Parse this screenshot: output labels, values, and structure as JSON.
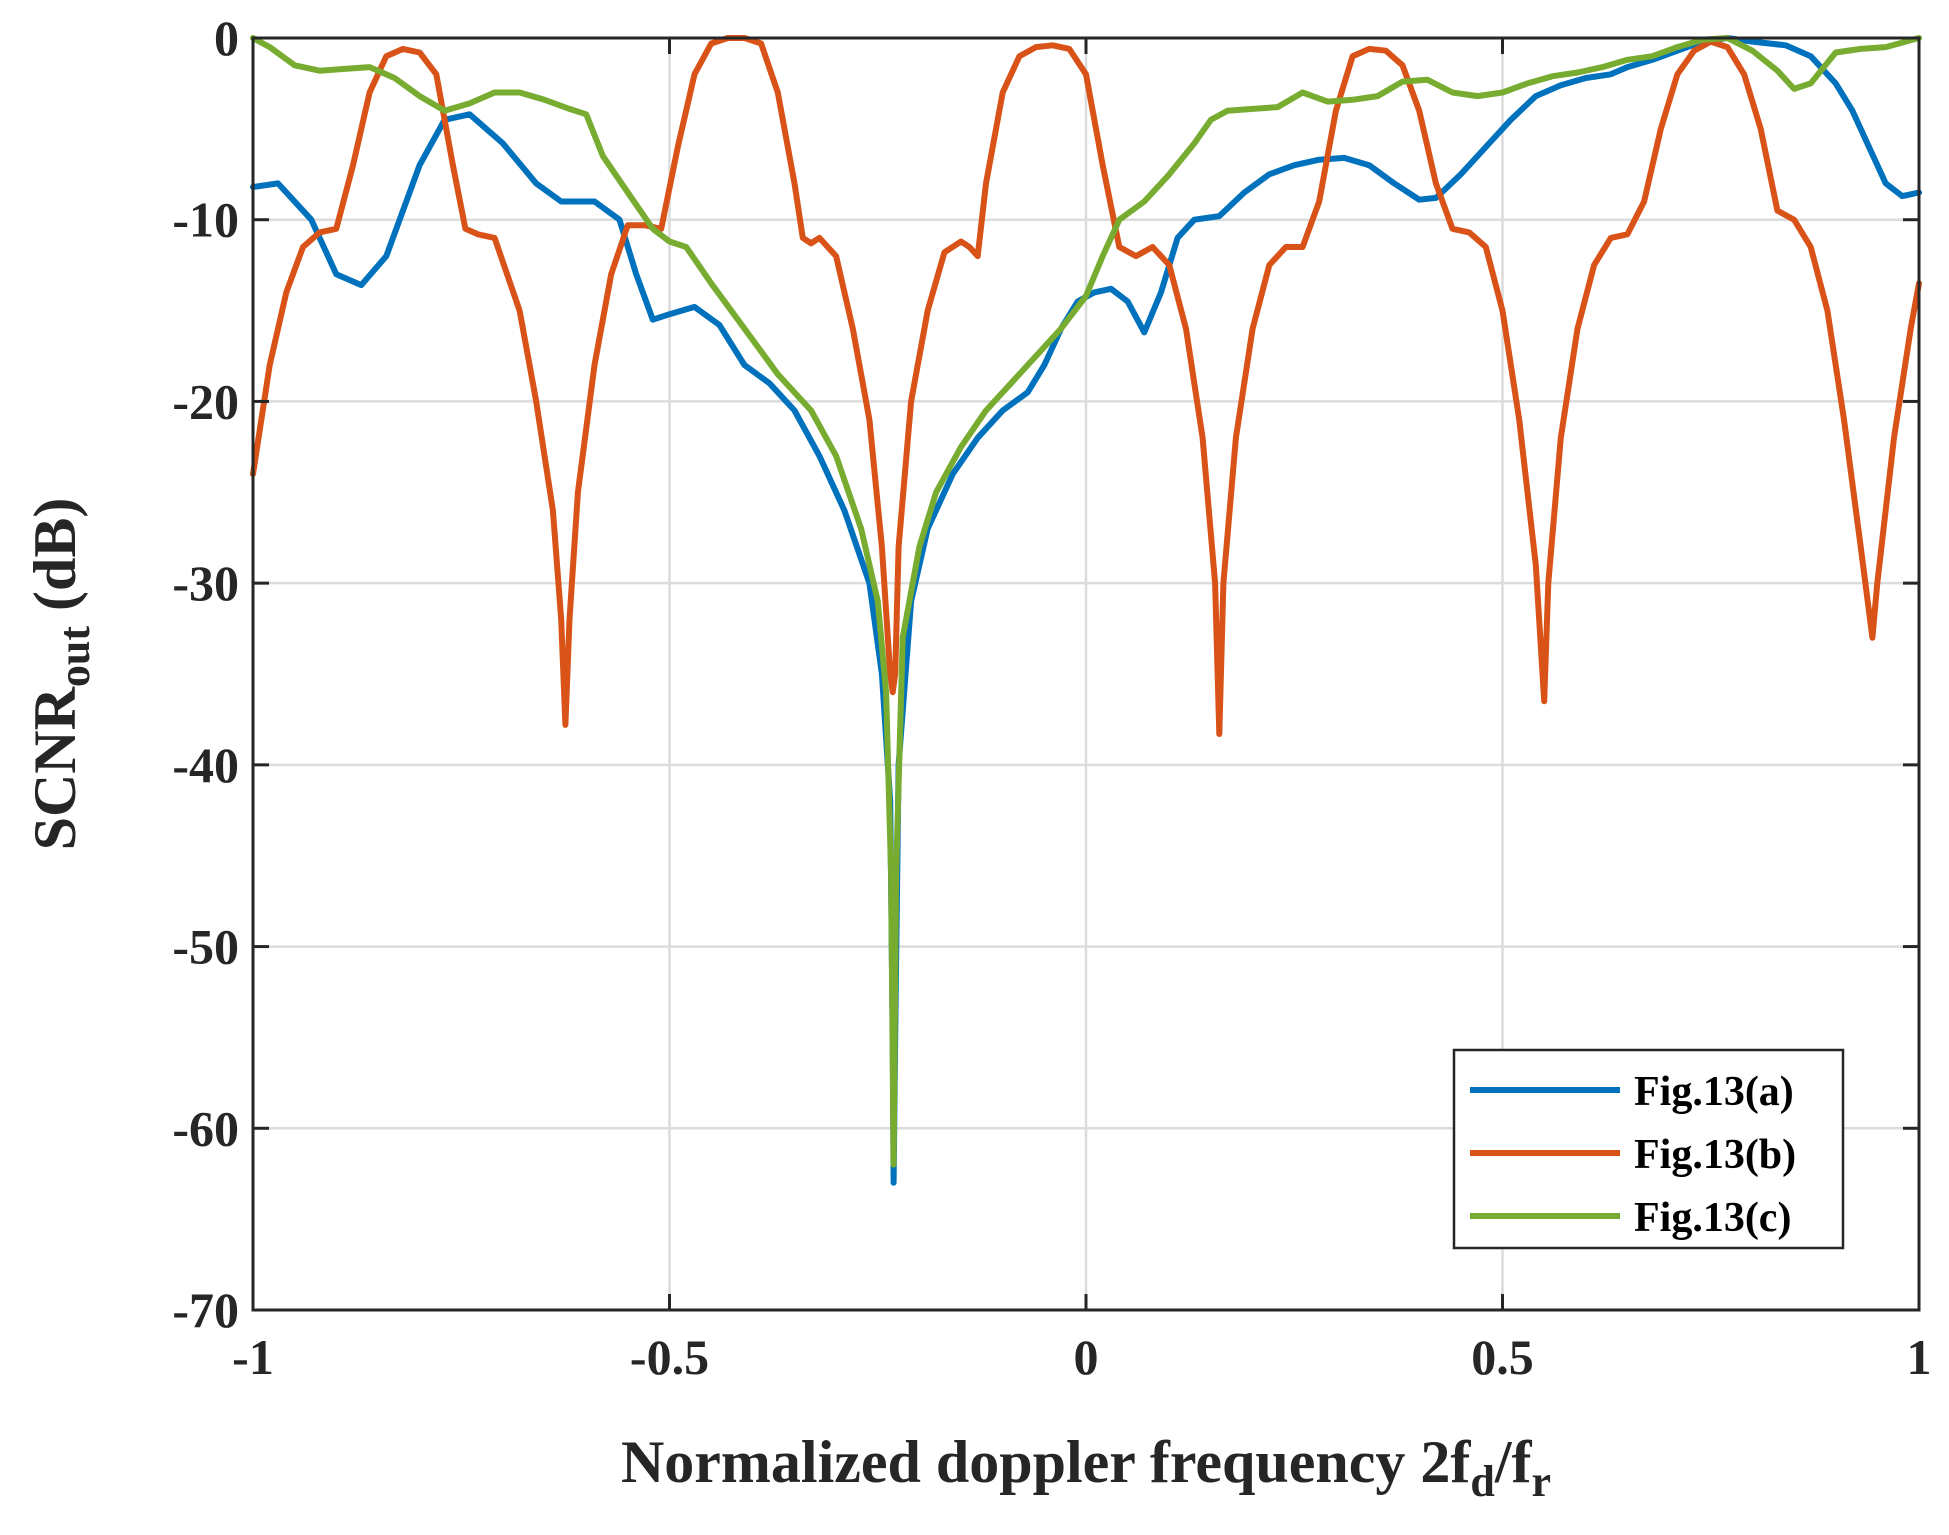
{
  "chart_data": {
    "type": "line",
    "xlabel": "Normalized doppler frequency 2f_d/f_r",
    "xlabel_parts": {
      "main": "Normalized doppler frequency 2f",
      "sub1": "d",
      "slash": "/f",
      "sub2": "r"
    },
    "ylabel": "SCNR_out (dB)",
    "ylabel_parts": {
      "main": "SCNR",
      "sub": "out",
      "unit": " (dB)"
    },
    "xlim": [
      -1,
      1
    ],
    "ylim": [
      -70,
      0
    ],
    "xticks": [
      -1,
      -0.5,
      0,
      0.5,
      1
    ],
    "xtick_labels": [
      "-1",
      "-0.5",
      "0",
      "0.5",
      "1"
    ],
    "yticks": [
      0,
      -10,
      -20,
      -30,
      -40,
      -50,
      -60,
      -70
    ],
    "ytick_labels": [
      "0",
      "-10",
      "-20",
      "-30",
      "-40",
      "-50",
      "-60",
      "-70"
    ],
    "grid": true,
    "legend_position": "bottom-right",
    "series": [
      {
        "name": "Fig.13(a)",
        "color": "#0072BD",
        "points": [
          [
            -1,
            -8.2
          ],
          [
            -0.97,
            -8.0
          ],
          [
            -0.93,
            -10
          ],
          [
            -0.9,
            -13
          ],
          [
            -0.87,
            -13.6
          ],
          [
            -0.84,
            -12
          ],
          [
            -0.8,
            -7
          ],
          [
            -0.77,
            -4.5
          ],
          [
            -0.74,
            -4.2
          ],
          [
            -0.7,
            -5.8
          ],
          [
            -0.66,
            -8
          ],
          [
            -0.63,
            -9
          ],
          [
            -0.59,
            -9
          ],
          [
            -0.56,
            -10
          ],
          [
            -0.54,
            -13
          ],
          [
            -0.52,
            -15.5
          ],
          [
            -0.5,
            -15.2
          ],
          [
            -0.47,
            -14.8
          ],
          [
            -0.44,
            -15.8
          ],
          [
            -0.41,
            -18
          ],
          [
            -0.38,
            -19
          ],
          [
            -0.35,
            -20.5
          ],
          [
            -0.32,
            -23
          ],
          [
            -0.29,
            -26
          ],
          [
            -0.26,
            -30
          ],
          [
            -0.245,
            -35
          ],
          [
            -0.235,
            -42
          ],
          [
            -0.232,
            -55
          ],
          [
            -0.231,
            -63
          ],
          [
            -0.229,
            -55
          ],
          [
            -0.225,
            -40
          ],
          [
            -0.21,
            -31
          ],
          [
            -0.19,
            -27
          ],
          [
            -0.16,
            -24
          ],
          [
            -0.13,
            -22
          ],
          [
            -0.1,
            -20.5
          ],
          [
            -0.07,
            -19.5
          ],
          [
            -0.05,
            -18
          ],
          [
            -0.03,
            -16
          ],
          [
            -0.01,
            -14.5
          ],
          [
            0.01,
            -14
          ],
          [
            0.03,
            -13.8
          ],
          [
            0.05,
            -14.5
          ],
          [
            0.07,
            -16.2
          ],
          [
            0.09,
            -14
          ],
          [
            0.11,
            -11
          ],
          [
            0.13,
            -10
          ],
          [
            0.16,
            -9.8
          ],
          [
            0.19,
            -8.5
          ],
          [
            0.22,
            -7.5
          ],
          [
            0.25,
            -7
          ],
          [
            0.28,
            -6.7
          ],
          [
            0.31,
            -6.6
          ],
          [
            0.34,
            -7
          ],
          [
            0.37,
            -8
          ],
          [
            0.4,
            -8.9
          ],
          [
            0.42,
            -8.8
          ],
          [
            0.45,
            -7.5
          ],
          [
            0.48,
            -6
          ],
          [
            0.51,
            -4.5
          ],
          [
            0.54,
            -3.2
          ],
          [
            0.57,
            -2.6
          ],
          [
            0.6,
            -2.2
          ],
          [
            0.63,
            -2
          ],
          [
            0.65,
            -1.6
          ],
          [
            0.68,
            -1.2
          ],
          [
            0.71,
            -0.7
          ],
          [
            0.74,
            -0.2
          ],
          [
            0.77,
            0
          ],
          [
            0.8,
            -0.2
          ],
          [
            0.84,
            -0.4
          ],
          [
            0.87,
            -1
          ],
          [
            0.9,
            -2.5
          ],
          [
            0.92,
            -4
          ],
          [
            0.94,
            -6
          ],
          [
            0.96,
            -8
          ],
          [
            0.98,
            -8.7
          ],
          [
            1,
            -8.5
          ]
        ]
      },
      {
        "name": "Fig.13(b)",
        "color": "#D95319",
        "points": [
          [
            -1,
            -24
          ],
          [
            -0.98,
            -18
          ],
          [
            -0.96,
            -14
          ],
          [
            -0.94,
            -11.5
          ],
          [
            -0.92,
            -10.7
          ],
          [
            -0.9,
            -10.5
          ],
          [
            -0.88,
            -7
          ],
          [
            -0.86,
            -3
          ],
          [
            -0.84,
            -1
          ],
          [
            -0.82,
            -0.6
          ],
          [
            -0.8,
            -0.8
          ],
          [
            -0.78,
            -2
          ],
          [
            -0.76,
            -7
          ],
          [
            -0.745,
            -10.5
          ],
          [
            -0.73,
            -10.8
          ],
          [
            -0.71,
            -11
          ],
          [
            -0.68,
            -15
          ],
          [
            -0.66,
            -20
          ],
          [
            -0.64,
            -26
          ],
          [
            -0.63,
            -32
          ],
          [
            -0.625,
            -37.8
          ],
          [
            -0.62,
            -32
          ],
          [
            -0.61,
            -25
          ],
          [
            -0.59,
            -18
          ],
          [
            -0.57,
            -13
          ],
          [
            -0.55,
            -10.3
          ],
          [
            -0.53,
            -10.3
          ],
          [
            -0.51,
            -10.5
          ],
          [
            -0.49,
            -6
          ],
          [
            -0.47,
            -2
          ],
          [
            -0.45,
            -0.3
          ],
          [
            -0.43,
            0
          ],
          [
            -0.41,
            0
          ],
          [
            -0.39,
            -0.3
          ],
          [
            -0.37,
            -3
          ],
          [
            -0.35,
            -8
          ],
          [
            -0.34,
            -11
          ],
          [
            -0.33,
            -11.3
          ],
          [
            -0.32,
            -11
          ],
          [
            -0.3,
            -12
          ],
          [
            -0.28,
            -16
          ],
          [
            -0.26,
            -21
          ],
          [
            -0.245,
            -28
          ],
          [
            -0.235,
            -35
          ],
          [
            -0.232,
            -36
          ],
          [
            -0.229,
            -35
          ],
          [
            -0.225,
            -28
          ],
          [
            -0.21,
            -20
          ],
          [
            -0.19,
            -15
          ],
          [
            -0.17,
            -11.8
          ],
          [
            -0.15,
            -11.2
          ],
          [
            -0.14,
            -11.5
          ],
          [
            -0.13,
            -12
          ],
          [
            -0.12,
            -8
          ],
          [
            -0.1,
            -3
          ],
          [
            -0.08,
            -1
          ],
          [
            -0.06,
            -0.5
          ],
          [
            -0.04,
            -0.4
          ],
          [
            -0.02,
            -0.6
          ],
          [
            0,
            -2
          ],
          [
            0.02,
            -7
          ],
          [
            0.04,
            -11.5
          ],
          [
            0.06,
            -12
          ],
          [
            0.08,
            -11.5
          ],
          [
            0.1,
            -12.5
          ],
          [
            0.12,
            -16
          ],
          [
            0.14,
            -22
          ],
          [
            0.155,
            -30
          ],
          [
            0.16,
            -38.3
          ],
          [
            0.165,
            -30
          ],
          [
            0.18,
            -22
          ],
          [
            0.2,
            -16
          ],
          [
            0.22,
            -12.5
          ],
          [
            0.24,
            -11.5
          ],
          [
            0.26,
            -11.5
          ],
          [
            0.28,
            -9
          ],
          [
            0.3,
            -4
          ],
          [
            0.32,
            -1
          ],
          [
            0.34,
            -0.6
          ],
          [
            0.36,
            -0.7
          ],
          [
            0.38,
            -1.5
          ],
          [
            0.4,
            -4
          ],
          [
            0.42,
            -8
          ],
          [
            0.44,
            -10.5
          ],
          [
            0.46,
            -10.7
          ],
          [
            0.48,
            -11.5
          ],
          [
            0.5,
            -15
          ],
          [
            0.52,
            -21
          ],
          [
            0.54,
            -29
          ],
          [
            0.55,
            -36.5
          ],
          [
            0.555,
            -30
          ],
          [
            0.57,
            -22
          ],
          [
            0.59,
            -16
          ],
          [
            0.61,
            -12.5
          ],
          [
            0.63,
            -11
          ],
          [
            0.65,
            -10.8
          ],
          [
            0.67,
            -9
          ],
          [
            0.69,
            -5
          ],
          [
            0.71,
            -2
          ],
          [
            0.73,
            -0.7
          ],
          [
            0.75,
            -0.2
          ],
          [
            0.77,
            -0.5
          ],
          [
            0.79,
            -2
          ],
          [
            0.81,
            -5
          ],
          [
            0.83,
            -9.5
          ],
          [
            0.85,
            -10
          ],
          [
            0.87,
            -11.5
          ],
          [
            0.89,
            -15
          ],
          [
            0.91,
            -21
          ],
          [
            0.93,
            -28
          ],
          [
            0.944,
            -33
          ],
          [
            0.95,
            -30
          ],
          [
            0.97,
            -22
          ],
          [
            0.99,
            -16
          ],
          [
            1,
            -13.5
          ]
        ]
      },
      {
        "name": "Fig.13(c)",
        "color": "#77AC30",
        "points": [
          [
            -1,
            0
          ],
          [
            -0.98,
            -0.5
          ],
          [
            -0.95,
            -1.5
          ],
          [
            -0.92,
            -1.8
          ],
          [
            -0.89,
            -1.7
          ],
          [
            -0.86,
            -1.6
          ],
          [
            -0.83,
            -2.2
          ],
          [
            -0.8,
            -3.2
          ],
          [
            -0.77,
            -4
          ],
          [
            -0.74,
            -3.6
          ],
          [
            -0.71,
            -3
          ],
          [
            -0.68,
            -3
          ],
          [
            -0.65,
            -3.4
          ],
          [
            -0.62,
            -3.9
          ],
          [
            -0.6,
            -4.2
          ],
          [
            -0.58,
            -6.5
          ],
          [
            -0.55,
            -8.5
          ],
          [
            -0.52,
            -10.5
          ],
          [
            -0.5,
            -11.2
          ],
          [
            -0.48,
            -11.5
          ],
          [
            -0.45,
            -13.5
          ],
          [
            -0.41,
            -16
          ],
          [
            -0.37,
            -18.5
          ],
          [
            -0.33,
            -20.5
          ],
          [
            -0.3,
            -23
          ],
          [
            -0.27,
            -27
          ],
          [
            -0.25,
            -31
          ],
          [
            -0.24,
            -36
          ],
          [
            -0.234,
            -46
          ],
          [
            -0.231,
            -62
          ],
          [
            -0.228,
            -46
          ],
          [
            -0.22,
            -33
          ],
          [
            -0.2,
            -28
          ],
          [
            -0.18,
            -25
          ],
          [
            -0.15,
            -22.5
          ],
          [
            -0.12,
            -20.5
          ],
          [
            -0.09,
            -19
          ],
          [
            -0.06,
            -17.5
          ],
          [
            -0.03,
            -16
          ],
          [
            0,
            -14.2
          ],
          [
            0.02,
            -12
          ],
          [
            0.04,
            -10
          ],
          [
            0.07,
            -9
          ],
          [
            0.1,
            -7.5
          ],
          [
            0.13,
            -5.8
          ],
          [
            0.15,
            -4.5
          ],
          [
            0.17,
            -4
          ],
          [
            0.2,
            -3.9
          ],
          [
            0.23,
            -3.8
          ],
          [
            0.26,
            -3
          ],
          [
            0.29,
            -3.5
          ],
          [
            0.32,
            -3.4
          ],
          [
            0.35,
            -3.2
          ],
          [
            0.38,
            -2.4
          ],
          [
            0.41,
            -2.3
          ],
          [
            0.44,
            -3
          ],
          [
            0.47,
            -3.2
          ],
          [
            0.5,
            -3
          ],
          [
            0.53,
            -2.5
          ],
          [
            0.56,
            -2.1
          ],
          [
            0.59,
            -1.9
          ],
          [
            0.62,
            -1.6
          ],
          [
            0.65,
            -1.2
          ],
          [
            0.68,
            -1
          ],
          [
            0.71,
            -0.5
          ],
          [
            0.74,
            -0.1
          ],
          [
            0.77,
            0
          ],
          [
            0.8,
            -0.7
          ],
          [
            0.83,
            -1.8
          ],
          [
            0.85,
            -2.8
          ],
          [
            0.87,
            -2.5
          ],
          [
            0.9,
            -0.8
          ],
          [
            0.93,
            -0.6
          ],
          [
            0.96,
            -0.5
          ],
          [
            1,
            0
          ]
        ]
      }
    ]
  }
}
